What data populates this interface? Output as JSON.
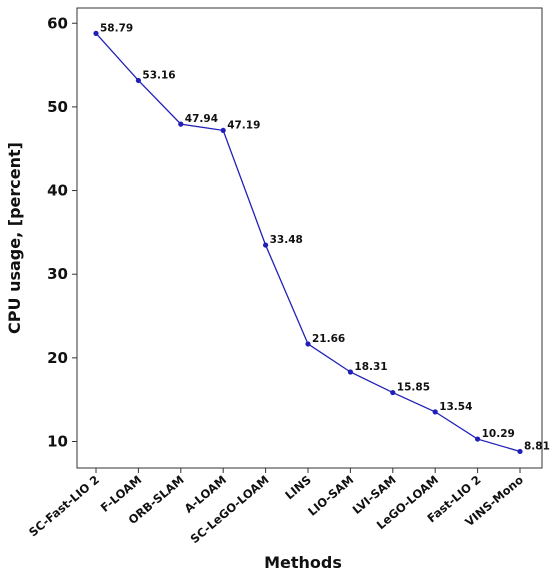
{
  "chart_data": {
    "type": "line",
    "title": "",
    "xlabel": "Methods",
    "ylabel": "CPU usage, [percent]",
    "categories": [
      "SC-Fast-LIO 2",
      "F-LOAM",
      "ORB-SLAM",
      "A-LOAM",
      "SC-LeGO-LOAM",
      "LINS",
      "LIO-SAM",
      "LVI-SAM",
      "LeGO-LOAM",
      "Fast-LIO 2",
      "VINS-Mono"
    ],
    "series": [
      {
        "values": [
          58.79,
          53.16,
          47.94,
          47.19,
          33.48,
          21.66,
          18.31,
          15.85,
          13.54,
          10.29,
          8.81
        ],
        "labels": [
          "58.79",
          "53.16",
          "47.94",
          "47.19",
          "33.48",
          "21.66",
          "18.31",
          "15.85",
          "13.54",
          "10.29",
          "8.81"
        ],
        "color": "#2020b8"
      }
    ],
    "yticks": [
      "10",
      "20",
      "30",
      "40",
      "50",
      "60"
    ],
    "ylim": [
      7,
      61
    ],
    "grid": false,
    "legend": "none"
  }
}
